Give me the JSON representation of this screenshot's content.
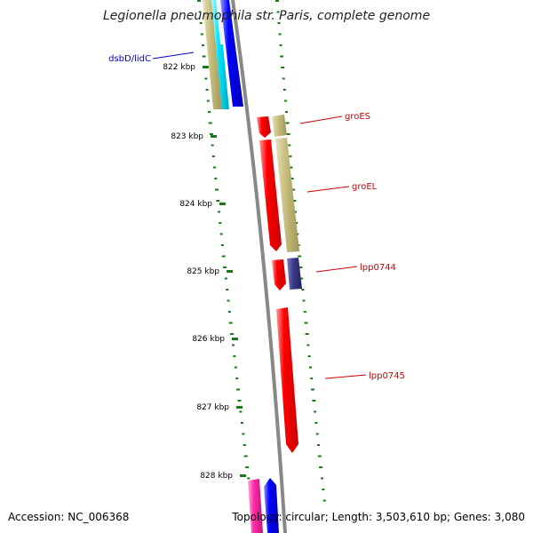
{
  "title": "Legionella pneumophila str. Paris, complete genome",
  "footer": {
    "accession": "Accession: NC_006368",
    "summary": "Topology: circular; Length: 3,503,610 bp; Genes: 3,080"
  },
  "ticks": [
    "822 kbp",
    "823 kbp",
    "824 kbp",
    "825 kbp",
    "826 kbp",
    "827 kbp",
    "828 kbp"
  ],
  "gene_labels": [
    {
      "text": "dsbD/lidC",
      "color": "#0000cc"
    },
    {
      "text": "groES",
      "color": "#cc0000"
    },
    {
      "text": "groEL",
      "color": "#cc0000"
    },
    {
      "text": "lpp0744",
      "color": "#cc0000"
    },
    {
      "text": "lpp0745",
      "color": "#cc0000"
    }
  ],
  "colors": {
    "backbone": "#888888",
    "tick": "#1a7a1a",
    "feature_red": "#ff0000",
    "feature_khaki": "#c8bf7f",
    "feature_cyan": "#00e5ff",
    "feature_blue": "#0000ff",
    "feature_navy": "#3a3a8a",
    "feature_pink": "#ff2ba6"
  }
}
